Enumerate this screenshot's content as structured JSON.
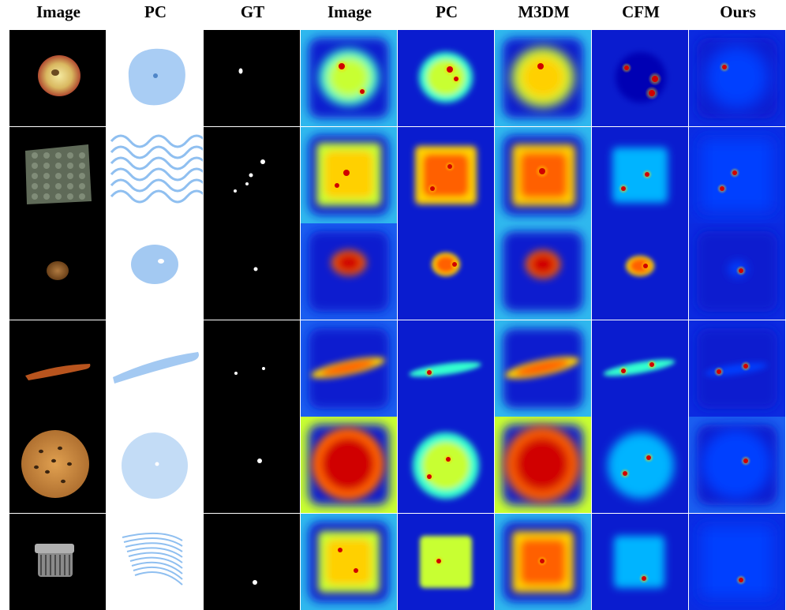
{
  "columns": [
    "Image",
    "PC",
    "GT",
    "Image",
    "PC",
    "M3DM",
    "CFM",
    "Ours"
  ],
  "rows": [
    {
      "object": "apple"
    },
    {
      "object": "foam"
    },
    {
      "object": "potato"
    },
    {
      "object": "carrot"
    },
    {
      "object": "cookie"
    },
    {
      "object": "cable-gland"
    }
  ],
  "colors": {
    "heatmap_background": "#0a1ccf",
    "heatmap_hot": "#d00000",
    "gt_background": "#000000",
    "gt_mask": "#ffffff",
    "pc_blue": "#8fbff0"
  }
}
